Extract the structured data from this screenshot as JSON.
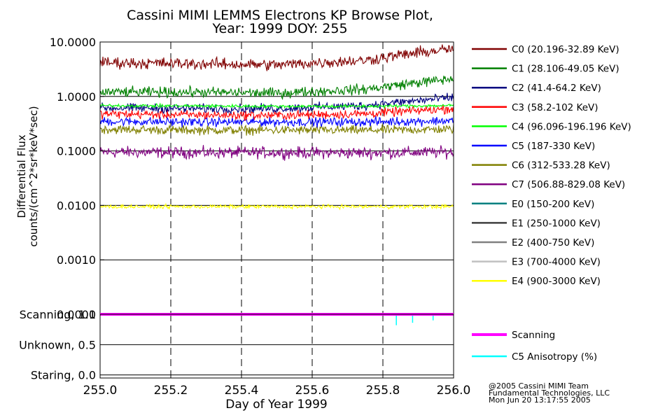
{
  "chart_data": {
    "type": "line",
    "title_line1": "Cassini MIMI LEMMS Electrons KP Browse Plot,",
    "title_line2": "Year: 1999 DOY: 255",
    "ylabel_line1": "Differential Flux",
    "ylabel_line2": "counts/(cm^2*sr*keV*sec)",
    "xlabel": "Day of Year 1999",
    "yscale": "log",
    "ylim": [
      0.0001,
      10
    ],
    "xlim": [
      255.0,
      256.0
    ],
    "x_ticks": [
      "255.0",
      "255.2",
      "255.4",
      "255.6",
      "255.8",
      "256.0"
    ],
    "x_tick_values": [
      255.0,
      255.2,
      255.4,
      255.6,
      255.8,
      256.0
    ],
    "y_ticks": [
      "10.0000",
      "1.0000",
      "0.1000",
      "0.0100",
      "0.0010",
      "0.0001"
    ],
    "y_tick_values": [
      10,
      1,
      0.1,
      0.01,
      0.001,
      0.0001
    ],
    "grid": true,
    "legend_position": "right",
    "series": [
      {
        "name": "C0 (20.196-32.89 KeV)",
        "color": "#800000",
        "level": [
          4.2,
          4.0,
          3.8,
          4.6,
          7.5
        ],
        "noise": 0.09
      },
      {
        "name": "C1 (28.106-49.05 KeV)",
        "color": "#008000",
        "level": [
          1.2,
          1.2,
          1.15,
          1.35,
          2.1
        ],
        "noise": 0.08
      },
      {
        "name": "C2 (41.4-64.2 KeV)",
        "color": "#000080",
        "level": [
          0.62,
          0.6,
          0.6,
          0.68,
          0.95
        ],
        "noise": 0.07
      },
      {
        "name": "C3 (58.2-102 KeV)",
        "color": "#ff0000",
        "level": [
          0.48,
          0.46,
          0.45,
          0.48,
          0.6
        ],
        "noise": 0.07
      },
      {
        "name": "C4 (96.096-196.196 KeV)",
        "color": "#00ff00",
        "level": [
          0.68,
          0.67,
          0.66,
          0.66,
          0.68
        ],
        "noise": 0.025
      },
      {
        "name": "C5 (187-330 KeV)",
        "color": "#0000ff",
        "level": [
          0.35,
          0.34,
          0.34,
          0.34,
          0.36
        ],
        "noise": 0.07
      },
      {
        "name": "C6 (312-533.28 KeV)",
        "color": "#808000",
        "level": [
          0.25,
          0.24,
          0.24,
          0.24,
          0.25
        ],
        "noise": 0.07
      },
      {
        "name": "C7 (506.88-829.08 KeV)",
        "color": "#800080",
        "level": [
          0.095,
          0.093,
          0.093,
          0.092,
          0.095
        ],
        "noise": 0.09
      },
      {
        "name": "E0 (150-200 KeV)",
        "color": "#008080",
        "level": null,
        "noise": 0
      },
      {
        "name": "E1 (250-1000 KeV)",
        "color": "#404040",
        "level": null,
        "noise": 0
      },
      {
        "name": "E2 (400-750 KeV)",
        "color": "#808080",
        "level": null,
        "noise": 0
      },
      {
        "name": "E3 (700-4000 KeV)",
        "color": "#c0c0c0",
        "level": null,
        "noise": 0
      },
      {
        "name": "E4 (900-3000 KeV)",
        "color": "#ffff00",
        "level": [
          0.0095,
          0.0095,
          0.0095,
          0.0095,
          0.0095
        ],
        "noise": 0.03
      }
    ],
    "lower_panel": {
      "y_ticks": [
        "Scanning, 1.0",
        "Unknown, 0.5",
        "Staring, 0.0"
      ],
      "y_tick_values": [
        1.0,
        0.5,
        0.0
      ],
      "ylim": [
        -0.05,
        1.0
      ],
      "series": [
        {
          "name": "Scanning",
          "color": "#ff00ff",
          "value": 1.0
        },
        {
          "name": "C5 Anisotropy (%)",
          "color": "#00ffff",
          "spikes": [
            [
              255.838,
              0.82
            ],
            [
              255.884,
              0.86
            ],
            [
              255.942,
              0.9
            ]
          ]
        }
      ]
    },
    "footer": [
      "@2005 Cassini MIMI Team",
      "Fundamental Technologies, LLC",
      "Mon Jun 20 13:17:55 2005"
    ]
  }
}
